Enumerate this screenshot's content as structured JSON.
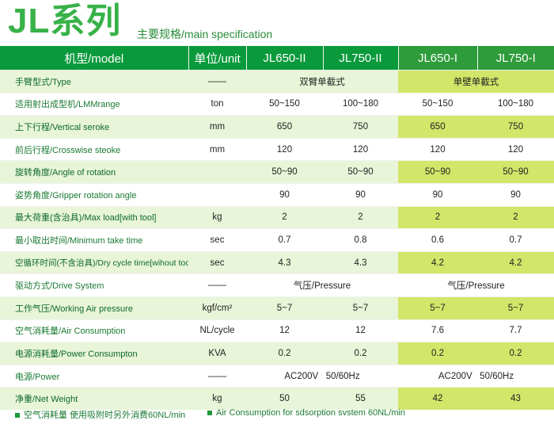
{
  "header": {
    "title": "JL系列",
    "subtitle": "主要规格/main specification"
  },
  "table": {
    "columns": [
      "机型/model",
      "单位/unit",
      "JL650-II",
      "JL750-II",
      "JL650-I",
      "JL750-I"
    ],
    "rows": [
      {
        "label": "手臂型式/Type",
        "unit": "——",
        "merged_left": "双臂单截式",
        "merged_right": "单壁单截式"
      },
      {
        "label": "适用射出成型机/LMMrange",
        "unit": "ton",
        "values": [
          "50~150",
          "100~180",
          "50~150",
          "100~180"
        ]
      },
      {
        "label": "上下行程/Vertical seroke",
        "unit": "mm",
        "values": [
          "650",
          "750",
          "650",
          "750"
        ]
      },
      {
        "label": "前后行程/Crosswise steoke",
        "unit": "mm",
        "values": [
          "120",
          "120",
          "120",
          "120"
        ]
      },
      {
        "label": "旋转角度/Angle of rotation",
        "unit": "",
        "values": [
          "50~90",
          "50~90",
          "50~90",
          "50~90"
        ]
      },
      {
        "label": "姿势角度/Gripper rotation angle",
        "unit": "",
        "values": [
          "90",
          "90",
          "90",
          "90"
        ]
      },
      {
        "label": "最大荷重(含治具)/Max load[with tool]",
        "unit": "kg",
        "values": [
          "2",
          "2",
          "2",
          "2"
        ]
      },
      {
        "label": "最小取出时间/Minimum take time",
        "unit": "sec",
        "values": [
          "0.7",
          "0.8",
          "0.6",
          "0.7"
        ]
      },
      {
        "label": "空循环时间(不含治具)/Dry cycle time[wihout tool]",
        "unit": "sec",
        "values": [
          "4.3",
          "4.3",
          "4.2",
          "4.2"
        ]
      },
      {
        "label": "驱动方式/Drive System",
        "unit": "——",
        "merged_left": "气压/Pressure",
        "merged_right": "气压/Pressure"
      },
      {
        "label": "工作气压/Working Air pressure",
        "unit": "kgf/cm²",
        "values": [
          "5~7",
          "5~7",
          "5~7",
          "5~7"
        ]
      },
      {
        "label": "空气消耗量/Air Consumption",
        "unit": "NL/cycle",
        "values": [
          "12",
          "12",
          "7.6",
          "7.7"
        ]
      },
      {
        "label": "电源消耗量/Power Consumpton",
        "unit": "KVA",
        "values": [
          "0.2",
          "0.2",
          "0.2",
          "0.2"
        ]
      },
      {
        "label": "电源/Power",
        "unit": "——",
        "merged_left": "AC200V   50/60Hz",
        "merged_right": "AC200V   50/60Hz"
      },
      {
        "label": "净重/Net Weight",
        "unit": "kg",
        "values": [
          "50",
          "55",
          "42",
          "43"
        ]
      }
    ]
  },
  "notes": {
    "left": "空气消耗量 使用吸附时另外消费60NL/min",
    "right": "Air Consumption for sdsorption svstem 60NL/min"
  },
  "colors": {
    "header_green": "#0a9a3c",
    "title_green": "#38b248",
    "row_green": "#e8f5d8",
    "row_yellow": "#d2e66a"
  }
}
